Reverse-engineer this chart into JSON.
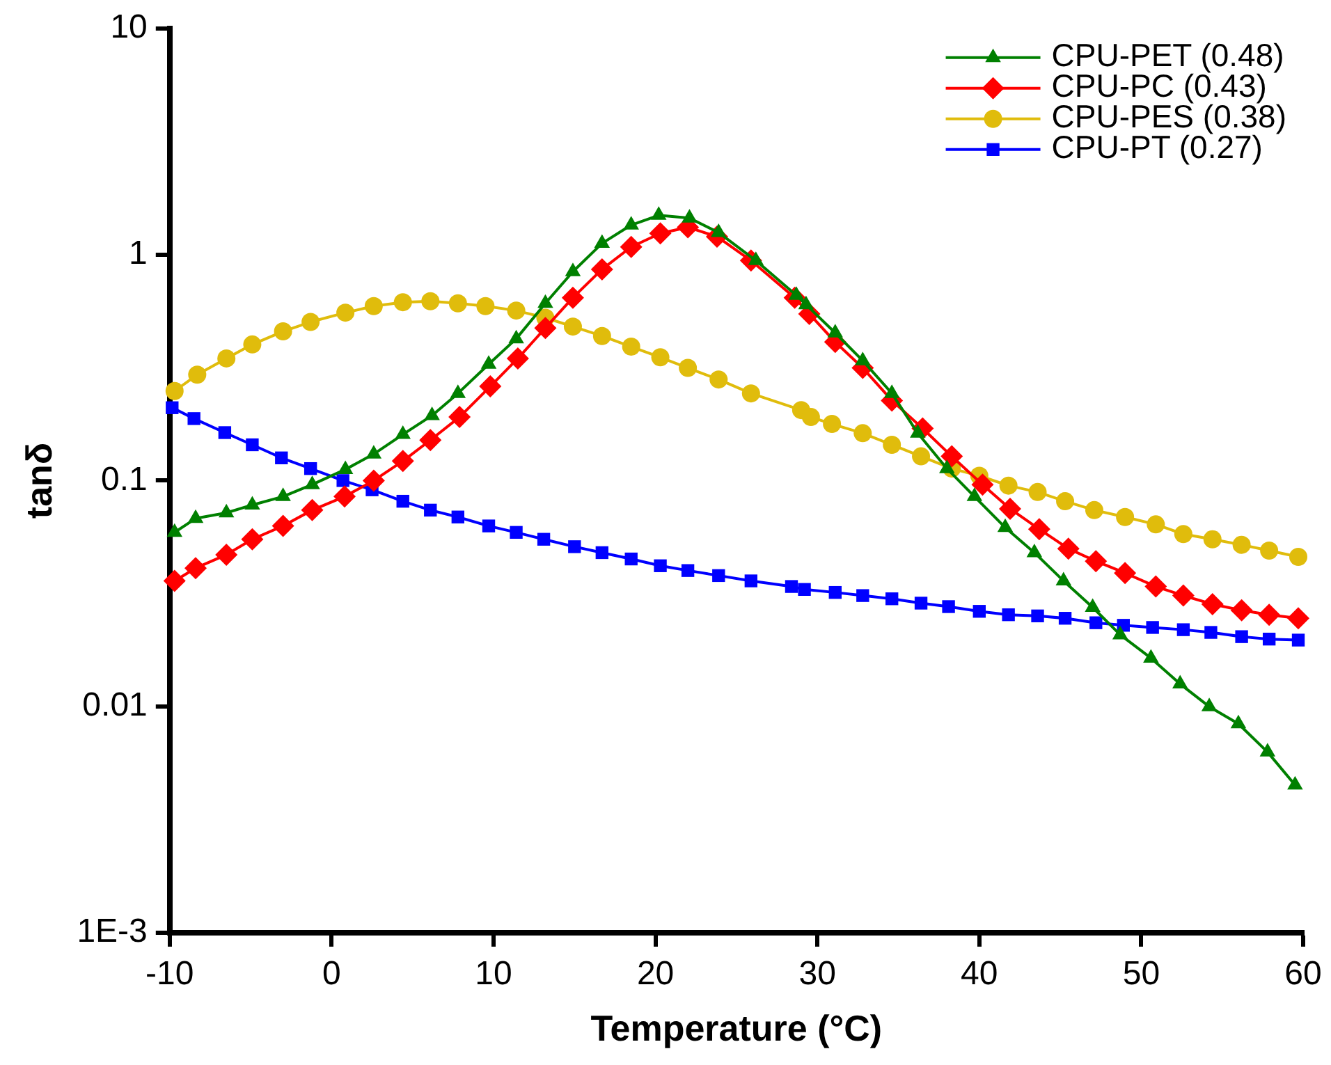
{
  "chart_data": {
    "type": "line",
    "xlabel": "Temperature (°C)",
    "ylabel": "tanδ",
    "log": "y",
    "grid": false,
    "legend": "top right",
    "line_style": "solid",
    "xlim": [
      -10,
      60
    ],
    "xticks": [
      -10,
      0,
      10,
      20,
      30,
      40,
      50,
      60
    ],
    "ylim": [
      0.001,
      10
    ],
    "yticks": [
      {
        "value": 0.001,
        "label": "1E-3"
      },
      0.01,
      0.1,
      1,
      10
    ],
    "series": [
      {
        "name": "CPU-PET (0.48)",
        "color": "#008000",
        "marker": "triangle",
        "x": [
          -9.7,
          -8.4,
          -6.5,
          -4.9,
          -3.0,
          -1.2,
          0.85,
          2.6,
          4.4,
          6.2,
          7.8,
          9.7,
          11.4,
          13.2,
          14.9,
          16.7,
          18.5,
          20.2,
          22.1,
          23.9,
          26.2,
          28.7,
          29.3,
          31.1,
          32.8,
          34.6,
          36.2,
          38.0,
          39.7,
          41.6,
          43.4,
          45.2,
          47.0,
          48.7,
          50.6,
          52.4,
          54.2,
          56.0,
          57.8,
          59.5
        ],
        "values": [
          0.059,
          0.068,
          0.072,
          0.078,
          0.085,
          0.096,
          0.112,
          0.131,
          0.16,
          0.194,
          0.243,
          0.327,
          0.424,
          0.608,
          0.84,
          1.12,
          1.35,
          1.49,
          1.45,
          1.25,
          0.94,
          0.66,
          0.6,
          0.45,
          0.339,
          0.243,
          0.162,
          0.113,
          0.085,
          0.062,
          0.048,
          0.036,
          0.0275,
          0.0208,
          0.0164,
          0.0126,
          0.01,
          0.0084,
          0.0063,
          0.0045
        ]
      },
      {
        "name": "CPU-PC (0.43)",
        "color": "#ff0000",
        "marker": "diamond",
        "x": [
          -9.7,
          -8.4,
          -6.5,
          -4.9,
          -3.0,
          -1.2,
          0.8,
          2.6,
          4.4,
          6.1,
          7.9,
          9.8,
          11.5,
          13.2,
          14.9,
          16.7,
          18.5,
          20.3,
          22.0,
          23.8,
          25.9,
          28.6,
          29.5,
          31.1,
          32.8,
          34.6,
          36.5,
          38.3,
          40.2,
          41.9,
          43.7,
          45.5,
          47.2,
          49.0,
          50.9,
          52.6,
          54.4,
          56.2,
          57.9,
          59.7
        ],
        "values": [
          0.036,
          0.041,
          0.047,
          0.055,
          0.063,
          0.074,
          0.085,
          0.1,
          0.122,
          0.151,
          0.191,
          0.261,
          0.347,
          0.473,
          0.644,
          0.86,
          1.08,
          1.24,
          1.32,
          1.2,
          0.94,
          0.644,
          0.546,
          0.41,
          0.315,
          0.226,
          0.17,
          0.128,
          0.096,
          0.075,
          0.061,
          0.05,
          0.044,
          0.039,
          0.034,
          0.031,
          0.0284,
          0.0267,
          0.0255,
          0.0246
        ]
      },
      {
        "name": "CPU-PES (0.38)",
        "color": "#e0bc0c",
        "marker": "circle",
        "x": [
          -9.7,
          -8.3,
          -6.5,
          -4.9,
          -3.0,
          -1.3,
          0.85,
          2.6,
          4.4,
          6.1,
          7.8,
          9.5,
          11.4,
          13.2,
          14.9,
          16.7,
          18.5,
          20.3,
          22.0,
          23.9,
          25.9,
          29.0,
          29.6,
          30.9,
          32.8,
          34.6,
          36.4,
          38.3,
          40.0,
          41.8,
          43.6,
          45.3,
          47.1,
          49.0,
          50.9,
          52.6,
          54.4,
          56.2,
          57.9,
          59.7
        ],
        "values": [
          0.249,
          0.294,
          0.347,
          0.4,
          0.457,
          0.503,
          0.553,
          0.591,
          0.615,
          0.621,
          0.608,
          0.591,
          0.565,
          0.525,
          0.48,
          0.436,
          0.391,
          0.351,
          0.315,
          0.28,
          0.243,
          0.205,
          0.191,
          0.178,
          0.162,
          0.144,
          0.128,
          0.113,
          0.105,
          0.095,
          0.089,
          0.081,
          0.074,
          0.069,
          0.064,
          0.058,
          0.055,
          0.052,
          0.049,
          0.046
        ]
      },
      {
        "name": "CPU-PT (0.27)",
        "color": "#0000ff",
        "marker": "square",
        "x": [
          -9.85,
          -8.5,
          -6.6,
          -4.9,
          -3.1,
          -1.3,
          0.7,
          2.5,
          4.4,
          6.1,
          7.8,
          9.7,
          11.4,
          13.1,
          15.0,
          16.7,
          18.5,
          20.3,
          22.0,
          23.9,
          25.9,
          28.4,
          29.2,
          31.1,
          32.8,
          34.6,
          36.4,
          38.1,
          40.0,
          41.8,
          43.6,
          45.3,
          47.2,
          48.9,
          50.7,
          52.6,
          54.3,
          56.2,
          57.9,
          59.7
        ],
        "values": [
          0.21,
          0.188,
          0.163,
          0.144,
          0.126,
          0.113,
          0.1,
          0.091,
          0.081,
          0.074,
          0.069,
          0.063,
          0.059,
          0.055,
          0.051,
          0.048,
          0.045,
          0.042,
          0.04,
          0.038,
          0.036,
          0.034,
          0.033,
          0.032,
          0.031,
          0.03,
          0.0287,
          0.0277,
          0.0264,
          0.0255,
          0.0252,
          0.0246,
          0.0235,
          0.0229,
          0.0224,
          0.0219,
          0.0213,
          0.0204,
          0.0199,
          0.0197
        ]
      }
    ]
  }
}
